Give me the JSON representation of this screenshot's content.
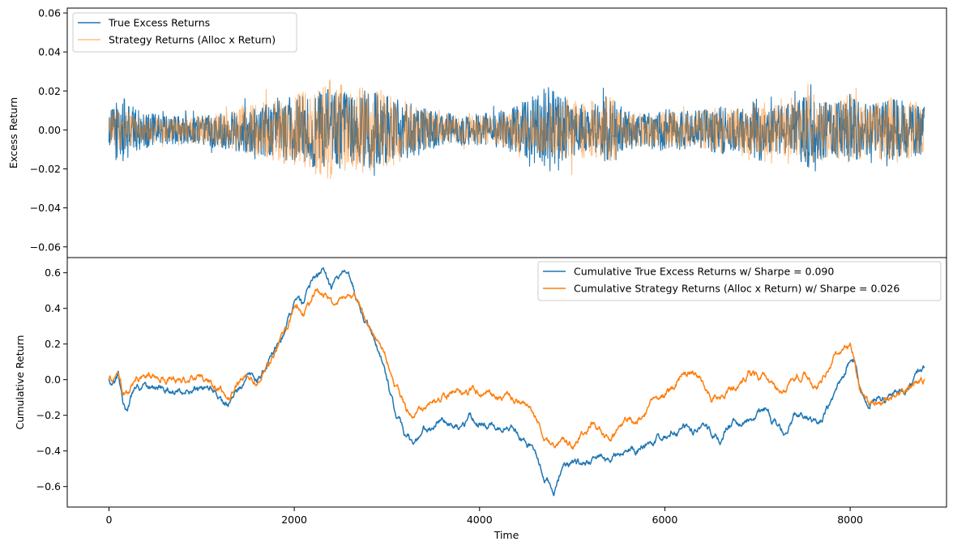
{
  "chart_data": [
    {
      "type": "line",
      "panel": "top",
      "ylabel": "Excess Return",
      "xlabel": "",
      "xlim": [
        -450,
        9040
      ],
      "ylim": [
        -0.0655,
        0.0625
      ],
      "yticks": [
        -0.06,
        -0.04,
        -0.02,
        0.0,
        0.02,
        0.04,
        0.06
      ],
      "ytick_labels": [
        "−0.06",
        "−0.04",
        "−0.02",
        "0.00",
        "0.02",
        "0.04",
        "0.06"
      ],
      "legend_position": "upper-left",
      "n_points": 8800,
      "series": [
        {
          "name": "True Excess Returns",
          "color": "#1f77b4",
          "alpha": 1.0,
          "volatility_knots": {
            "x": [
              0,
              100,
              200,
              300,
              400,
              600,
              800,
              1000,
              1200,
              1400,
              1600,
              1800,
              2000,
              2200,
              2400,
              2600,
              2800,
              3000,
              3200,
              3400,
              3600,
              3800,
              4000,
              4200,
              4400,
              4600,
              4800,
              5000,
              5200,
              5400,
              5600,
              5800,
              6000,
              6200,
              6400,
              6600,
              6800,
              7000,
              7200,
              7400,
              7600,
              7800,
              8000,
              8200,
              8400,
              8600,
              8800
            ],
            "amplitude": [
              0.012,
              0.03,
              0.024,
              0.017,
              0.015,
              0.012,
              0.012,
              0.012,
              0.015,
              0.018,
              0.02,
              0.024,
              0.028,
              0.032,
              0.034,
              0.03,
              0.033,
              0.03,
              0.024,
              0.018,
              0.014,
              0.014,
              0.013,
              0.015,
              0.02,
              0.032,
              0.038,
              0.022,
              0.02,
              0.03,
              0.016,
              0.014,
              0.018,
              0.016,
              0.016,
              0.02,
              0.018,
              0.026,
              0.02,
              0.024,
              0.036,
              0.02,
              0.03,
              0.02,
              0.026,
              0.024,
              0.02
            ]
          }
        },
        {
          "name": "Strategy Returns (Alloc x Return)",
          "color": "#ff7f0e",
          "alpha": 0.5,
          "volatility_knots": {
            "x": [
              0,
              100,
              200,
              300,
              400,
              600,
              800,
              1000,
              1200,
              1400,
              1600,
              1800,
              2000,
              2200,
              2400,
              2600,
              2800,
              3000,
              3200,
              3400,
              3600,
              3800,
              4000,
              4200,
              4400,
              4600,
              4800,
              5000,
              5200,
              5400,
              5600,
              5800,
              6000,
              6200,
              6400,
              6600,
              6800,
              7000,
              7200,
              7400,
              7600,
              7800,
              8000,
              8200,
              8400,
              8600,
              8800
            ],
            "amplitude": [
              0.01,
              0.02,
              0.016,
              0.012,
              0.011,
              0.01,
              0.01,
              0.012,
              0.014,
              0.018,
              0.022,
              0.026,
              0.03,
              0.036,
              0.042,
              0.034,
              0.036,
              0.032,
              0.024,
              0.016,
              0.012,
              0.012,
              0.012,
              0.013,
              0.016,
              0.02,
              0.022,
              0.026,
              0.024,
              0.028,
              0.016,
              0.014,
              0.016,
              0.014,
              0.016,
              0.02,
              0.018,
              0.024,
              0.02,
              0.024,
              0.03,
              0.022,
              0.028,
              0.02,
              0.028,
              0.024,
              0.02
            ]
          }
        }
      ]
    },
    {
      "type": "line",
      "panel": "bottom",
      "xlabel": "Time",
      "ylabel": "Cumulative Return",
      "xlim": [
        -450,
        9040
      ],
      "ylim": [
        -0.715,
        0.685
      ],
      "xticks": [
        0,
        2000,
        4000,
        6000,
        8000
      ],
      "xtick_labels": [
        "0",
        "2000",
        "4000",
        "6000",
        "8000"
      ],
      "yticks": [
        -0.6,
        -0.4,
        -0.2,
        0.0,
        0.2,
        0.4,
        0.6
      ],
      "ytick_labels": [
        "−0.6",
        "−0.4",
        "−0.2",
        "0.0",
        "0.2",
        "0.4",
        "0.6"
      ],
      "legend_position": "upper-right",
      "series": [
        {
          "name": "Cumulative True Excess Returns w/ Sharpe = 0.090",
          "color": "#1f77b4",
          "x": [
            0,
            60,
            100,
            150,
            200,
            300,
            400,
            600,
            800,
            1000,
            1100,
            1200,
            1300,
            1400,
            1500,
            1600,
            1700,
            1800,
            1900,
            2000,
            2100,
            2200,
            2300,
            2400,
            2500,
            2600,
            2700,
            2800,
            2900,
            3000,
            3100,
            3200,
            3300,
            3400,
            3500,
            3600,
            3700,
            3800,
            3900,
            4000,
            4100,
            4200,
            4300,
            4400,
            4500,
            4600,
            4700,
            4800,
            4900,
            5000,
            5100,
            5200,
            5300,
            5400,
            5500,
            5600,
            5700,
            5800,
            5900,
            6000,
            6100,
            6200,
            6300,
            6400,
            6500,
            6600,
            6700,
            6800,
            6900,
            7000,
            7100,
            7200,
            7300,
            7400,
            7500,
            7600,
            7700,
            7800,
            7900,
            8000,
            8050,
            8100,
            8200,
            8300,
            8400,
            8500,
            8600,
            8700,
            8800
          ],
          "y": [
            0.0,
            -0.02,
            0.02,
            -0.12,
            -0.16,
            -0.04,
            -0.05,
            -0.05,
            -0.04,
            -0.06,
            -0.05,
            -0.1,
            -0.14,
            -0.05,
            0.05,
            0.0,
            0.08,
            0.18,
            0.28,
            0.42,
            0.4,
            0.55,
            0.6,
            0.5,
            0.58,
            0.56,
            0.42,
            0.3,
            0.2,
            0.0,
            -0.2,
            -0.32,
            -0.36,
            -0.28,
            -0.25,
            -0.22,
            -0.25,
            -0.27,
            -0.22,
            -0.24,
            -0.26,
            -0.27,
            -0.24,
            -0.28,
            -0.35,
            -0.4,
            -0.55,
            -0.62,
            -0.5,
            -0.48,
            -0.46,
            -0.46,
            -0.42,
            -0.44,
            -0.38,
            -0.36,
            -0.4,
            -0.36,
            -0.33,
            -0.32,
            -0.28,
            -0.27,
            -0.28,
            -0.26,
            -0.3,
            -0.33,
            -0.25,
            -0.25,
            -0.22,
            -0.2,
            -0.17,
            -0.26,
            -0.3,
            -0.2,
            -0.2,
            -0.22,
            -0.2,
            -0.1,
            0.0,
            0.12,
            0.1,
            -0.04,
            -0.13,
            -0.1,
            -0.12,
            -0.05,
            -0.06,
            0.02,
            0.04
          ]
        },
        {
          "name": "Cumulative Strategy Returns (Alloc x Return) w/ Sharpe = 0.026",
          "color": "#ff7f0e",
          "x": [
            0,
            60,
            100,
            150,
            200,
            300,
            400,
            600,
            800,
            1000,
            1100,
            1200,
            1300,
            1400,
            1500,
            1600,
            1700,
            1800,
            1900,
            2000,
            2100,
            2200,
            2300,
            2400,
            2500,
            2600,
            2700,
            2800,
            2900,
            3000,
            3100,
            3200,
            3300,
            3400,
            3500,
            3600,
            3700,
            3800,
            3900,
            4000,
            4100,
            4200,
            4300,
            4400,
            4500,
            4600,
            4700,
            4800,
            4900,
            5000,
            5100,
            5200,
            5300,
            5400,
            5500,
            5600,
            5700,
            5800,
            5900,
            6000,
            6100,
            6200,
            6300,
            6400,
            6500,
            6600,
            6700,
            6800,
            6900,
            7000,
            7100,
            7200,
            7300,
            7400,
            7500,
            7600,
            7700,
            7800,
            7900,
            8000,
            8050,
            8100,
            8200,
            8300,
            8400,
            8500,
            8600,
            8700,
            8800
          ],
          "y": [
            0.0,
            0.0,
            0.04,
            -0.06,
            -0.06,
            0.02,
            0.02,
            0.02,
            0.02,
            0.01,
            -0.02,
            -0.06,
            -0.1,
            -0.02,
            0.05,
            0.0,
            0.06,
            0.15,
            0.25,
            0.4,
            0.38,
            0.48,
            0.5,
            0.44,
            0.48,
            0.5,
            0.42,
            0.3,
            0.22,
            0.1,
            -0.05,
            -0.18,
            -0.22,
            -0.16,
            -0.12,
            -0.08,
            -0.06,
            -0.08,
            -0.06,
            -0.06,
            -0.04,
            -0.08,
            -0.07,
            -0.12,
            -0.14,
            -0.2,
            -0.32,
            -0.38,
            -0.34,
            -0.36,
            -0.3,
            -0.22,
            -0.3,
            -0.35,
            -0.27,
            -0.24,
            -0.24,
            -0.18,
            -0.12,
            -0.08,
            -0.04,
            0.03,
            0.04,
            0.0,
            -0.1,
            -0.1,
            -0.06,
            -0.04,
            0.04,
            0.02,
            0.0,
            -0.04,
            -0.04,
            0.0,
            0.04,
            -0.04,
            0.02,
            0.1,
            0.16,
            0.18,
            0.1,
            -0.04,
            -0.14,
            -0.12,
            -0.1,
            -0.06,
            -0.04,
            -0.02,
            -0.02
          ]
        }
      ]
    }
  ]
}
